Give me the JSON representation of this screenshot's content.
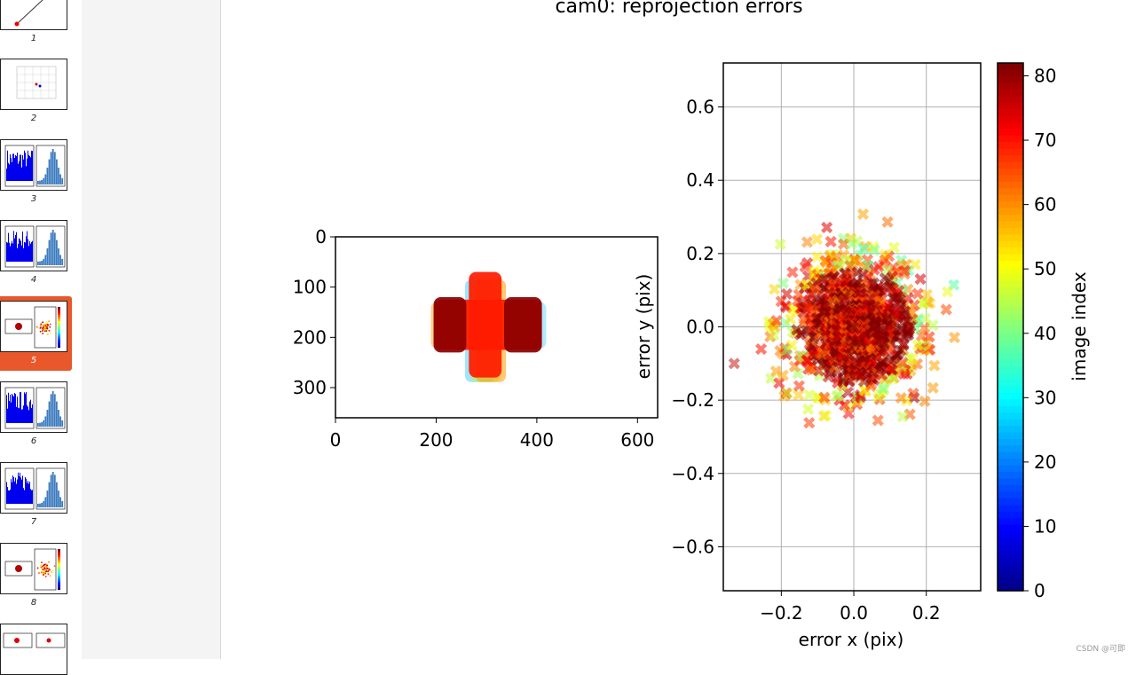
{
  "sidebar": {
    "pages": [
      {
        "num": "1",
        "kind": "line"
      },
      {
        "num": "2",
        "kind": "3d"
      },
      {
        "num": "3",
        "kind": "hist"
      },
      {
        "num": "4",
        "kind": "hist"
      },
      {
        "num": "5",
        "kind": "scatter",
        "selected": true
      },
      {
        "num": "6",
        "kind": "hist"
      },
      {
        "num": "7",
        "kind": "hist"
      },
      {
        "num": "8",
        "kind": "scatter"
      },
      {
        "num": "",
        "kind": "pair"
      }
    ],
    "selected_color": "#e8582a"
  },
  "figure": {
    "title": "cam0: reprojection errors",
    "left_plot": {
      "x_ticks": [
        "0",
        "200",
        "400",
        "600"
      ],
      "y_ticks": [
        "0",
        "100",
        "200",
        "300"
      ],
      "xlim": [
        0,
        640
      ],
      "ylim": [
        360,
        0
      ]
    },
    "right_plot": {
      "xlabel": "error x (pix)",
      "ylabel": "error y (pix)",
      "x_ticks": [
        "−0.2",
        "0.0",
        "0.2"
      ],
      "y_ticks": [
        "0.6",
        "0.4",
        "0.2",
        "0.0",
        "−0.2",
        "−0.4",
        "−0.6"
      ],
      "xlim": [
        -0.36,
        0.35
      ],
      "ylim": [
        -0.72,
        0.72
      ]
    },
    "colorbar": {
      "label": "image index",
      "ticks": [
        "80",
        "70",
        "60",
        "50",
        "40",
        "30",
        "20",
        "10",
        "0"
      ],
      "range": [
        0,
        82
      ],
      "colormap": "jet"
    }
  },
  "chart_data": [
    {
      "type": "scatter",
      "title": "cam0: reprojection errors",
      "description_of_marks": "Detected corner pixel locations overlaid per image, colored by image index; cross-shaped cluster centered near (300,190)",
      "xlim": [
        0,
        640
      ],
      "ylim": [
        360,
        0
      ],
      "x_ticks": [
        0,
        200,
        400,
        600
      ],
      "y_ticks": [
        0,
        100,
        200,
        300
      ],
      "regions": [
        {
          "x_range": [
            265,
            330
          ],
          "y_range": [
            70,
            280
          ],
          "dominant_color": "#ff1a00"
        },
        {
          "x_range": [
            195,
            410
          ],
          "y_range": [
            125,
            225
          ],
          "dominant_color": "#ff1a00"
        },
        {
          "x_range": [
            195,
            260
          ],
          "y_range": [
            120,
            230
          ],
          "dominant_color": "#8b0000"
        },
        {
          "x_range": [
            335,
            410
          ],
          "y_range": [
            120,
            230
          ],
          "dominant_color": "#8b0000"
        }
      ]
    },
    {
      "type": "scatter",
      "xlabel": "error x (pix)",
      "ylabel": "error y (pix)",
      "xlim": [
        -0.36,
        0.35
      ],
      "ylim": [
        -0.72,
        0.72
      ],
      "x_ticks": [
        -0.2,
        0.0,
        0.2
      ],
      "y_ticks": [
        -0.6,
        -0.4,
        -0.2,
        0.0,
        0.2,
        0.4,
        0.6
      ],
      "grid": true,
      "marker": "x",
      "cloud": {
        "center": [
          0.0,
          0.0
        ],
        "extent_x": [
          -0.33,
          0.32
        ],
        "extent_y": [
          -0.29,
          0.3
        ],
        "dominant_color": "#c01000"
      },
      "colorbar": {
        "label": "image index",
        "min": 0,
        "max": 82,
        "ticks": [
          0,
          10,
          20,
          30,
          40,
          50,
          60,
          70,
          80
        ],
        "colormap": "jet"
      }
    }
  ],
  "watermark": "CSDN @可即"
}
